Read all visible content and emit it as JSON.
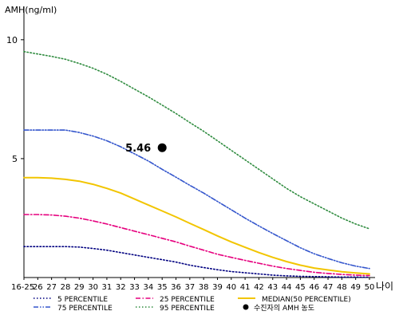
{
  "chart_data": {
    "type": "line",
    "ylabel": "AMH(ng/ml)",
    "xlabel": "나이",
    "x_tick_labels": [
      "16-25",
      "26",
      "27",
      "28",
      "29",
      "30",
      "31",
      "32",
      "33",
      "34",
      "35",
      "36",
      "37",
      "38",
      "39",
      "40",
      "41",
      "42",
      "43",
      "44",
      "45",
      "46",
      "47",
      "48",
      "49",
      "50"
    ],
    "y_ticks": [
      5,
      10
    ],
    "ylim": [
      0,
      11
    ],
    "grid": false,
    "legend_position": "bottom",
    "x": [
      25,
      26,
      27,
      28,
      29,
      30,
      31,
      32,
      33,
      34,
      35,
      36,
      37,
      38,
      39,
      40,
      41,
      42,
      43,
      44,
      45,
      46,
      47,
      48,
      49,
      50
    ],
    "series": [
      {
        "name": "5 PERCENTILE",
        "color": "#000080",
        "dash": "dotted",
        "values": [
          1.3,
          1.3,
          1.3,
          1.3,
          1.28,
          1.22,
          1.15,
          1.05,
          0.95,
          0.85,
          0.75,
          0.65,
          0.52,
          0.42,
          0.33,
          0.25,
          0.2,
          0.15,
          0.1,
          0.07,
          0.05,
          0.04,
          0.03,
          0.02,
          0.02,
          0.01
        ]
      },
      {
        "name": "25 PERCENTILE",
        "color": "#e6007e",
        "dash": "dashdot",
        "values": [
          2.65,
          2.65,
          2.63,
          2.58,
          2.5,
          2.38,
          2.25,
          2.1,
          1.95,
          1.8,
          1.65,
          1.5,
          1.32,
          1.15,
          0.98,
          0.85,
          0.72,
          0.6,
          0.48,
          0.38,
          0.3,
          0.22,
          0.17,
          0.13,
          0.1,
          0.08
        ]
      },
      {
        "name": "MEDIAN(50 PERCENTILE)",
        "color": "#f2c500",
        "dash": "solid",
        "values": [
          4.2,
          4.2,
          4.18,
          4.13,
          4.05,
          3.92,
          3.75,
          3.55,
          3.3,
          3.05,
          2.8,
          2.55,
          2.28,
          2.02,
          1.75,
          1.5,
          1.27,
          1.05,
          0.85,
          0.67,
          0.52,
          0.4,
          0.32,
          0.24,
          0.19,
          0.15
        ]
      },
      {
        "name": "75 PERCENTILE",
        "color": "#3355cc",
        "dash": "dashdotdot",
        "values": [
          6.2,
          6.2,
          6.2,
          6.2,
          6.1,
          5.95,
          5.75,
          5.5,
          5.2,
          4.9,
          4.55,
          4.22,
          3.88,
          3.55,
          3.2,
          2.85,
          2.5,
          2.17,
          1.85,
          1.55,
          1.25,
          1.0,
          0.8,
          0.62,
          0.48,
          0.38
        ]
      },
      {
        "name": "95 PERCENTILE",
        "color": "#2e8b3e",
        "dash": "dotted",
        "values": [
          9.5,
          9.4,
          9.3,
          9.18,
          9.0,
          8.8,
          8.55,
          8.25,
          7.92,
          7.6,
          7.25,
          6.9,
          6.52,
          6.15,
          5.75,
          5.35,
          4.95,
          4.55,
          4.15,
          3.75,
          3.4,
          3.1,
          2.8,
          2.5,
          2.25,
          2.05
        ]
      }
    ],
    "marker": {
      "name": "수진자의 AMH 농도",
      "x": 35,
      "y": 5.46,
      "label": "5.46"
    }
  }
}
